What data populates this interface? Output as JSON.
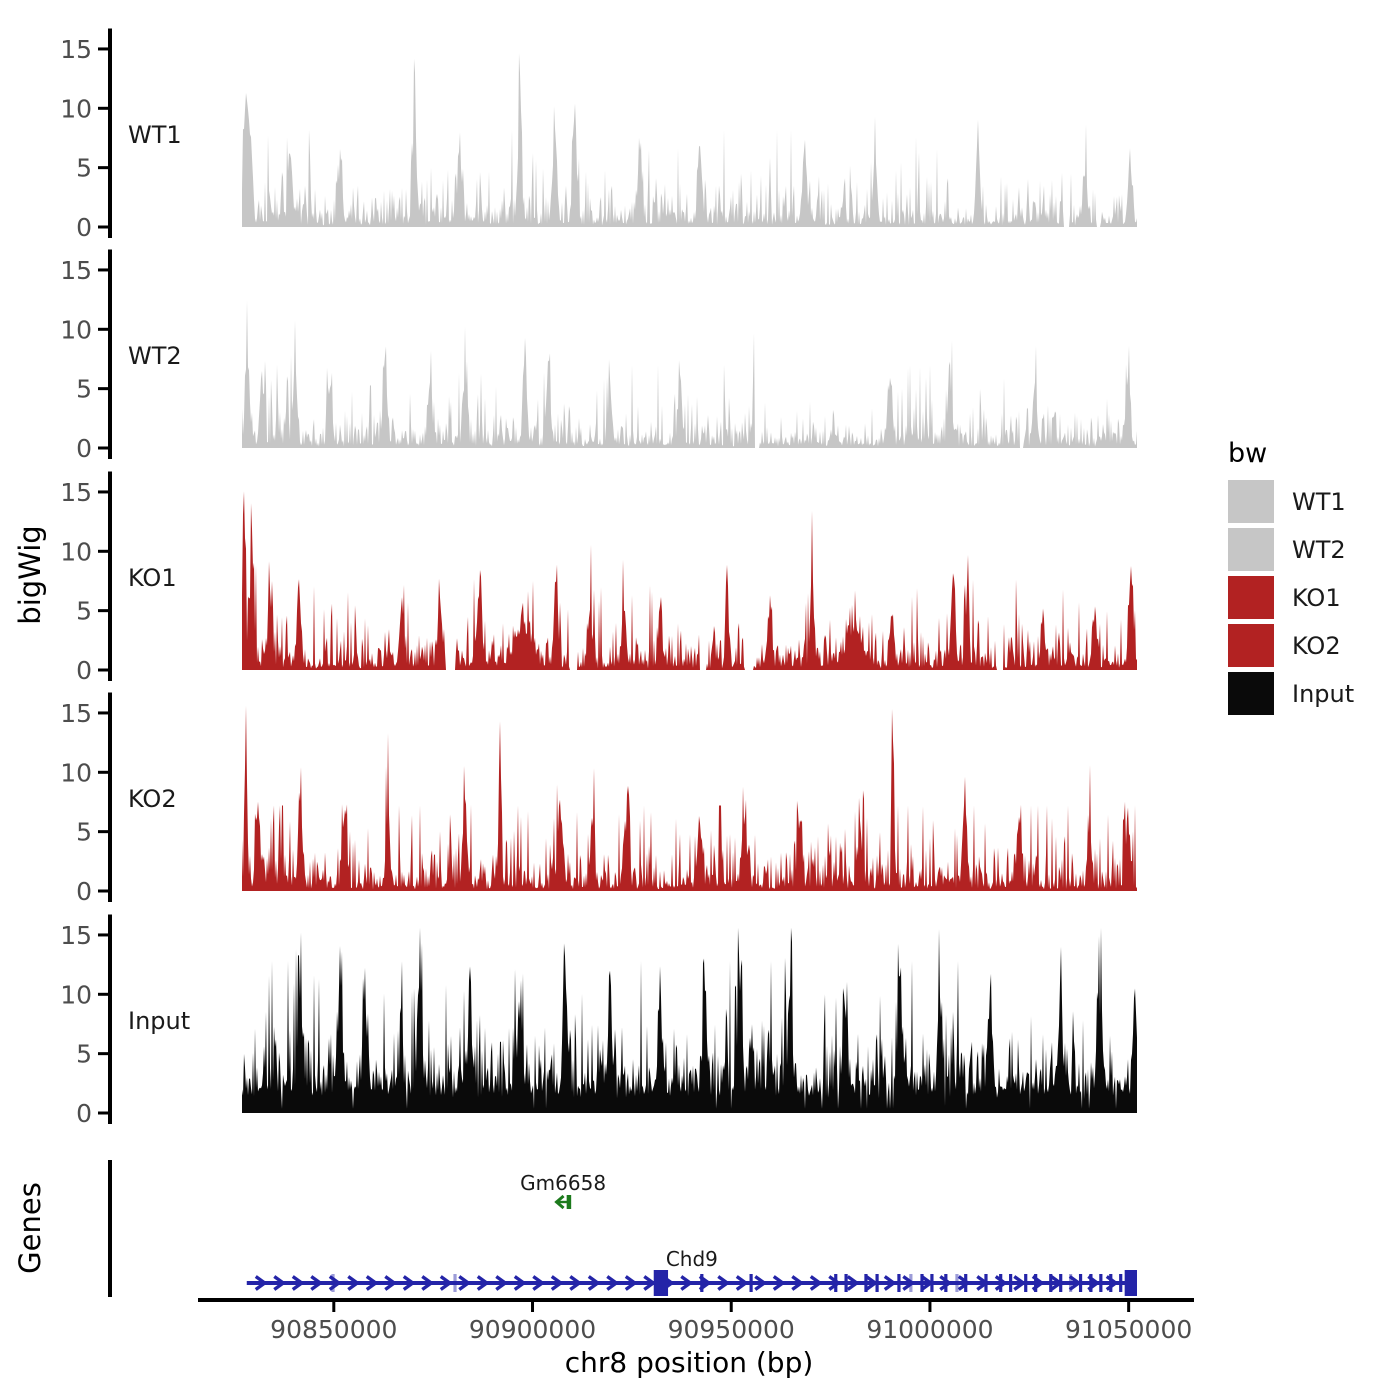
{
  "y_axis": {
    "title": "bigWig",
    "tick_values": [
      0,
      5,
      10,
      15
    ],
    "tick_labels": [
      "0",
      "5",
      "10",
      "15"
    ]
  },
  "x_axis": {
    "title": "chr8 position (bp)",
    "tick_values": [
      90850000,
      90900000,
      90950000,
      91000000,
      91050000
    ],
    "tick_labels": [
      "90850000",
      "90900000",
      "90950000",
      "91000000",
      "91050000"
    ]
  },
  "genes_panel": {
    "title": "Genes"
  },
  "legend": {
    "title": "bw",
    "entries": [
      {
        "label": "WT1",
        "color": "#C6C6C6"
      },
      {
        "label": "WT2",
        "color": "#C6C6C6"
      },
      {
        "label": "KO1",
        "color": "#B22222"
      },
      {
        "label": "KO2",
        "color": "#B22222"
      },
      {
        "label": "Input",
        "color": "#0A0A0A"
      }
    ]
  },
  "chart_data": {
    "type": "area",
    "title": "",
    "xlabel": "chr8 position (bp)",
    "ylabel": "bigWig",
    "xlim_bp": [
      90826900,
      91052100
    ],
    "ylim": [
      0,
      15.5
    ],
    "grid": false,
    "legend_position": "right",
    "tracks": [
      {
        "name": "WT1",
        "color": "#C6C6C6",
        "seed": 101,
        "base": 1.5,
        "noise_cap": 8.2,
        "peaks": [
          [
            90827700,
            11
          ],
          [
            90828900,
            8.4
          ],
          [
            90839000,
            6.3
          ],
          [
            90851600,
            5.3
          ],
          [
            90870400,
            7.1
          ],
          [
            90881700,
            5.8
          ],
          [
            90896800,
            7.2
          ],
          [
            90905600,
            9.2
          ],
          [
            90910700,
            7.6
          ],
          [
            90927000,
            6.3
          ],
          [
            90942100,
            5.8
          ],
          [
            90968500,
            6.8
          ],
          [
            90986200,
            5.3
          ],
          [
            91012100,
            7.6
          ],
          [
            91039000,
            4.8
          ],
          [
            91050300,
            5.1
          ]
        ],
        "gaps": [
          [
            91033500,
            91035200
          ],
          [
            91041800,
            91043000
          ]
        ]
      },
      {
        "name": "WT2",
        "color": "#C6C6C6",
        "seed": 202,
        "base": 1.45,
        "noise_cap": 7.0,
        "peaks": [
          [
            90828200,
            7.8
          ],
          [
            90831900,
            6.1
          ],
          [
            90840200,
            6.4
          ],
          [
            90849000,
            5.2
          ],
          [
            90862900,
            6.9
          ],
          [
            90874200,
            5.1
          ],
          [
            90883000,
            5.6
          ],
          [
            90898100,
            7.6
          ],
          [
            90903900,
            6.4
          ],
          [
            90919500,
            5.3
          ],
          [
            90937100,
            5.6
          ],
          [
            90956000,
            5.0
          ],
          [
            90989900,
            6.0
          ],
          [
            91005000,
            5.4
          ],
          [
            91026400,
            5.0
          ],
          [
            91049800,
            6.1
          ]
        ],
        "gaps": [
          [
            90955900,
            90957000
          ],
          [
            91022600,
            91023600
          ]
        ]
      },
      {
        "name": "KO1",
        "color": "#B22222",
        "seed": 303,
        "base": 1.35,
        "noise_cap": 7.6,
        "peaks": [
          [
            90827400,
            13.6,
            1.5
          ],
          [
            90829400,
            10.1
          ],
          [
            90833900,
            5.3
          ],
          [
            90841200,
            5.8
          ],
          [
            90867100,
            5.8
          ],
          [
            90876700,
            5.4
          ],
          [
            90886800,
            7.1
          ],
          [
            90897600,
            3.4,
            9
          ],
          [
            90905900,
            7.4
          ],
          [
            90914500,
            4.3
          ],
          [
            90923000,
            6.0
          ],
          [
            90932100,
            4.8
          ],
          [
            90948900,
            7.6,
            1.5
          ],
          [
            90959700,
            5.3
          ],
          [
            90970300,
            7.6
          ],
          [
            90981100,
            3.2,
            9
          ],
          [
            90990400,
            4.8
          ],
          [
            91005800,
            7.5
          ],
          [
            91009500,
            8.6,
            1.5
          ],
          [
            91028400,
            3.8
          ],
          [
            91041500,
            4.3
          ],
          [
            91050600,
            8.1
          ]
        ],
        "gaps": [
          [
            90878000,
            90880500
          ],
          [
            90909400,
            90911400
          ],
          [
            90942100,
            90943900
          ],
          [
            90953450,
            90955500
          ],
          [
            91016850,
            91018600
          ]
        ]
      },
      {
        "name": "KO2",
        "color": "#B22222",
        "seed": 404,
        "base": 1.6,
        "noise_cap": 7.2,
        "peaks": [
          [
            90827900,
            11.0,
            1.5
          ],
          [
            90830900,
            8.0
          ],
          [
            90841500,
            6.8
          ],
          [
            90852800,
            6.4
          ],
          [
            90863600,
            5.8
          ],
          [
            90883000,
            7.8
          ],
          [
            90891800,
            11.2,
            1.5
          ],
          [
            90906900,
            6.8
          ],
          [
            90915000,
            5.6
          ],
          [
            90923300,
            5.8
          ],
          [
            90942100,
            4.8
          ],
          [
            90953400,
            5.2
          ],
          [
            90967300,
            5.8
          ],
          [
            90982400,
            5.0
          ],
          [
            90990700,
            14.2,
            1.3
          ],
          [
            91008800,
            6.2
          ],
          [
            91022600,
            4.8
          ],
          [
            91040200,
            5.2
          ],
          [
            91049800,
            6.0
          ]
        ],
        "gaps": []
      },
      {
        "name": "Input",
        "color": "#0A0A0A",
        "seed": 505,
        "base": 2.1,
        "floor": 1.5,
        "slits": 0.02,
        "noise_cap": 12.8,
        "peaks": [
          [
            90841500,
            9.3
          ],
          [
            90851600,
            9.7
          ],
          [
            90857800,
            8.5
          ],
          [
            90871700,
            9.1
          ],
          [
            90884300,
            8.0
          ],
          [
            90896800,
            9.5
          ],
          [
            90908200,
            9.9
          ],
          [
            90919500,
            8.0
          ],
          [
            90932100,
            8.6
          ],
          [
            90943400,
            8.3
          ],
          [
            90952200,
            9.1
          ],
          [
            90964800,
            7.9
          ],
          [
            90978600,
            7.5
          ],
          [
            90992400,
            10.4
          ],
          [
            91002500,
            8.1
          ],
          [
            91015100,
            8.8
          ],
          [
            91032700,
            7.1
          ],
          [
            91042800,
            7.7
          ],
          [
            91051600,
            7.9
          ]
        ],
        "gaps": []
      }
    ],
    "genes": [
      {
        "name": "Gm6658",
        "strand": "-",
        "start_bp": 90905800,
        "end_bp": 90909600,
        "color": "#1C7A1C"
      },
      {
        "name": "Chd9",
        "strand": "+",
        "start_bp": 90828100,
        "end_bp": 91052100,
        "color": "#2424A8",
        "label_bp": 90940100,
        "exons_bp": [
          90849800,
          90880500,
          90942600,
          90955000,
          90976300,
          90978900,
          90983900,
          90986700,
          90992200,
          90995200,
          90998000,
          91000500,
          91004000,
          91006800,
          91009000,
          91014100,
          91017800,
          91020300,
          91024100,
          91026600,
          91030400,
          91032900,
          91035400,
          91037900,
          91040500,
          91043000,
          91045500,
          91048000
        ],
        "light_exons_bp": [
          90849800,
          90880500,
          90995200,
          91006800,
          91035400
        ],
        "thick_exons_bp": [
          [
            90930500,
            90934100
          ],
          [
            91049000,
            91052100
          ]
        ]
      }
    ]
  }
}
